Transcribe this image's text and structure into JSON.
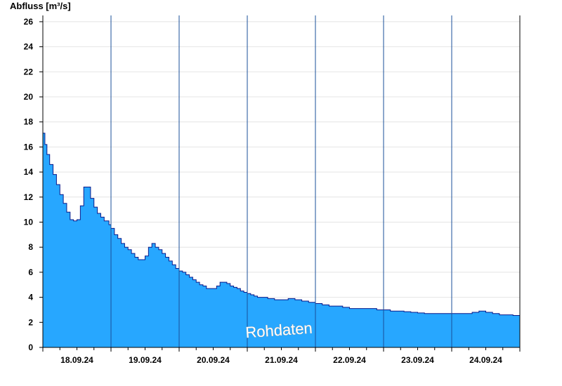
{
  "chart_data": {
    "type": "area",
    "ylabel": "Abfluss [m³/s]",
    "ylim": [
      0,
      26.5
    ],
    "yticks": [
      0,
      2,
      4,
      6,
      8,
      10,
      12,
      14,
      16,
      18,
      20,
      22,
      24,
      26
    ],
    "xlim": [
      17.0,
      24.0
    ],
    "xticks": [
      {
        "label": "18.09.24",
        "x": 17.5
      },
      {
        "label": "19.09.24",
        "x": 18.5
      },
      {
        "label": "20.09.24",
        "x": 19.5
      },
      {
        "label": "21.09.24",
        "x": 20.5
      },
      {
        "label": "22.09.24",
        "x": 21.5
      },
      {
        "label": "23.09.24",
        "x": 22.5
      },
      {
        "label": "24.09.24",
        "x": 23.5
      }
    ],
    "day_separators": [
      18.0,
      19.0,
      20.0,
      21.0,
      22.0,
      23.0
    ],
    "grid": true,
    "annotation": "Rohdaten",
    "fill_color": "#27a7ff",
    "line_color": "#0a1a8a",
    "series": [
      {
        "x": [
          17.0,
          17.03,
          17.06,
          17.1,
          17.15,
          17.2,
          17.25,
          17.3,
          17.35,
          17.4,
          17.45,
          17.5,
          17.55,
          17.6,
          17.65,
          17.7,
          17.75,
          17.8,
          17.85,
          17.9,
          17.93,
          17.97,
          18.0,
          18.05,
          18.1,
          18.15,
          18.2,
          18.25,
          18.3,
          18.35,
          18.4,
          18.45,
          18.5,
          18.55,
          18.6,
          18.65,
          18.7,
          18.75,
          18.8,
          18.85,
          18.9,
          18.95,
          19.0,
          19.05,
          19.1,
          19.15,
          19.2,
          19.25,
          19.3,
          19.35,
          19.4,
          19.45,
          19.5,
          19.55,
          19.6,
          19.65,
          19.7,
          19.75,
          19.8,
          19.85,
          19.9,
          19.95,
          20.0,
          20.05,
          20.1,
          20.15,
          20.2,
          20.3,
          20.4,
          20.5,
          20.6,
          20.7,
          20.8,
          20.9,
          21.0,
          21.1,
          21.2,
          21.3,
          21.4,
          21.5,
          21.6,
          21.7,
          21.8,
          21.9,
          22.0,
          22.1,
          22.2,
          22.3,
          22.4,
          22.5,
          22.6,
          22.7,
          22.8,
          22.9,
          23.0,
          23.1,
          23.2,
          23.3,
          23.4,
          23.5,
          23.6,
          23.7,
          23.8,
          23.9,
          24.0
        ],
        "y": [
          17.1,
          16.2,
          15.4,
          14.6,
          13.8,
          13.0,
          12.2,
          11.5,
          10.8,
          10.2,
          10.1,
          10.2,
          11.3,
          12.8,
          12.8,
          11.9,
          11.2,
          10.7,
          10.4,
          10.1,
          10.1,
          9.8,
          9.5,
          9.0,
          8.7,
          8.3,
          8.0,
          7.8,
          7.5,
          7.2,
          7.0,
          7.0,
          7.3,
          8.0,
          8.3,
          8.0,
          7.8,
          7.5,
          7.2,
          6.9,
          6.6,
          6.3,
          6.1,
          6.0,
          5.8,
          5.6,
          5.4,
          5.2,
          5.0,
          4.9,
          4.7,
          4.7,
          4.7,
          4.9,
          5.2,
          5.2,
          5.1,
          4.9,
          4.8,
          4.7,
          4.5,
          4.4,
          4.3,
          4.2,
          4.1,
          4.0,
          4.0,
          3.9,
          3.8,
          3.8,
          3.9,
          3.8,
          3.7,
          3.6,
          3.5,
          3.4,
          3.3,
          3.3,
          3.2,
          3.1,
          3.1,
          3.1,
          3.1,
          3.0,
          3.0,
          2.9,
          2.9,
          2.85,
          2.8,
          2.75,
          2.7,
          2.7,
          2.7,
          2.7,
          2.7,
          2.7,
          2.7,
          2.8,
          2.9,
          2.8,
          2.7,
          2.6,
          2.6,
          2.55,
          2.5
        ]
      }
    ]
  }
}
